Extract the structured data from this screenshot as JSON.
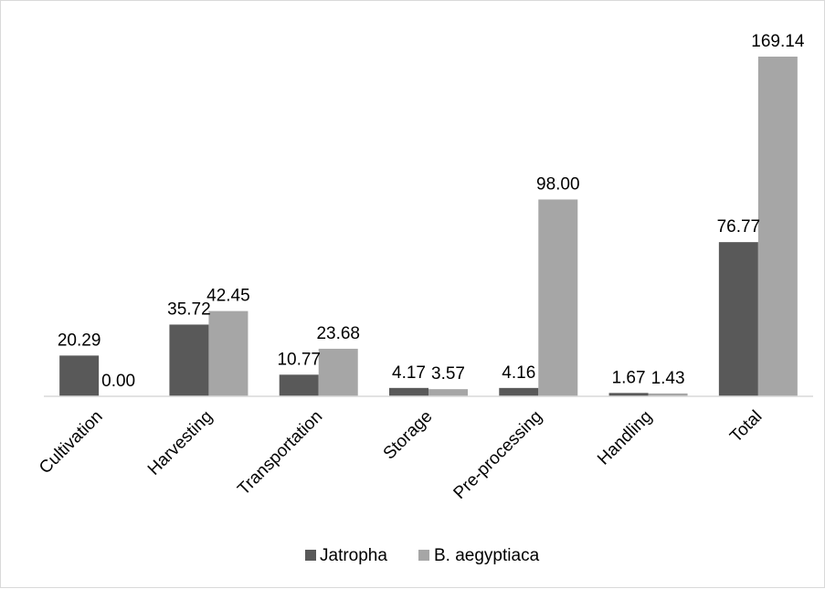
{
  "chart_data": {
    "type": "bar",
    "title": "",
    "xlabel": "",
    "ylabel": "",
    "categories": [
      "Cultivation",
      "Harvesting",
      "Transportation",
      "Storage",
      "Pre-processing",
      "Handling",
      "Total"
    ],
    "series": [
      {
        "name": "Jatropha",
        "color": "#595959",
        "values": [
          20.29,
          35.72,
          10.77,
          4.17,
          4.16,
          1.67,
          76.77
        ],
        "labels": [
          "20.29",
          "35.72",
          "10.77",
          "4.17",
          "4.16",
          "1.67",
          "76.77"
        ]
      },
      {
        "name": "B. aegyptiaca",
        "color": "#a6a6a6",
        "values": [
          0.0,
          42.45,
          23.68,
          3.57,
          98.0,
          1.43,
          169.14
        ],
        "labels": [
          "0.00",
          "42.45",
          "23.68",
          "3.57",
          "98.00",
          "1.43",
          "169.14"
        ]
      }
    ],
    "ylim": [
      0,
      169.14
    ],
    "grid": false,
    "legend_position": "bottom"
  }
}
